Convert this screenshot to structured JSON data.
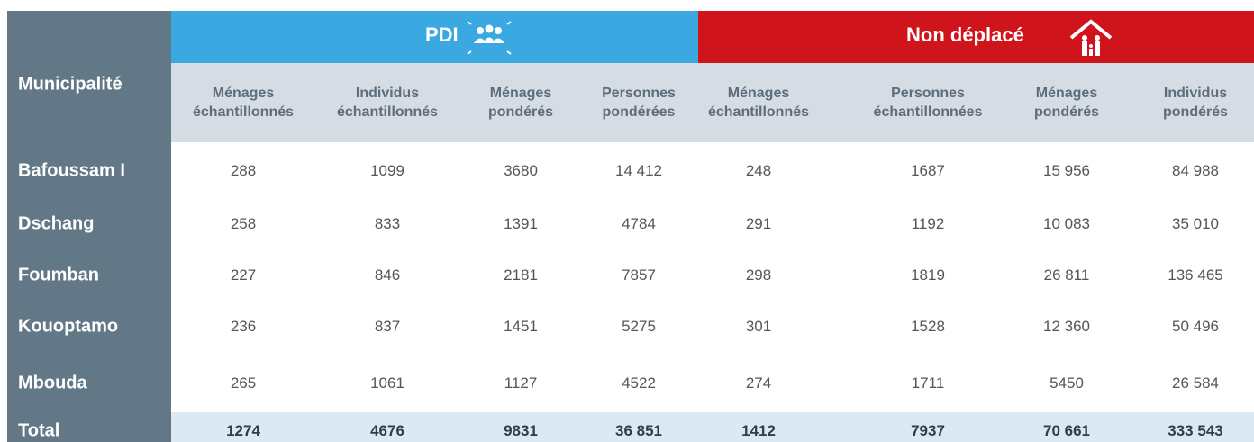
{
  "header": {
    "row_label": "Municipalité",
    "groups": [
      {
        "label": "PDI"
      },
      {
        "label": "Non déplacé"
      }
    ],
    "columns": [
      [
        "Ménages",
        "échantillonnés"
      ],
      [
        "Individus",
        "échantillonnés"
      ],
      [
        "Ménages",
        "pondérés"
      ],
      [
        "Personnes",
        "pondérées"
      ],
      [
        "Ménages",
        "échantillonnés"
      ],
      [
        "Personnes",
        "échantillonnées"
      ],
      [
        "Ménages",
        "pondérés"
      ],
      [
        "Individus",
        "pondérés"
      ]
    ]
  },
  "table": {
    "rows": [
      {
        "name": "Bafoussam I",
        "values": [
          "288",
          "1099",
          "3680",
          "14 412",
          "248",
          "1687",
          "15 956",
          "84 988"
        ]
      },
      {
        "name": "Dschang",
        "values": [
          "258",
          "833",
          "1391",
          "4784",
          "291",
          "1192",
          "10 083",
          "35 010"
        ]
      },
      {
        "name": "Foumban",
        "values": [
          "227",
          "846",
          "2181",
          "7857",
          "298",
          "1819",
          "26 811",
          "136 465"
        ]
      },
      {
        "name": "Kouoptamo",
        "values": [
          "236",
          "837",
          "1451",
          "5275",
          "301",
          "1528",
          "12 360",
          "50 496"
        ]
      },
      {
        "name": "Mbouda",
        "values": [
          "265",
          "1061",
          "1127",
          "4522",
          "274",
          "1711",
          "5450",
          "26 584"
        ]
      }
    ],
    "total": {
      "name": "Total",
      "values": [
        "1274",
        "4676",
        "9831",
        "36 851",
        "1412",
        "7937",
        "70 661",
        "333 543"
      ]
    }
  }
}
